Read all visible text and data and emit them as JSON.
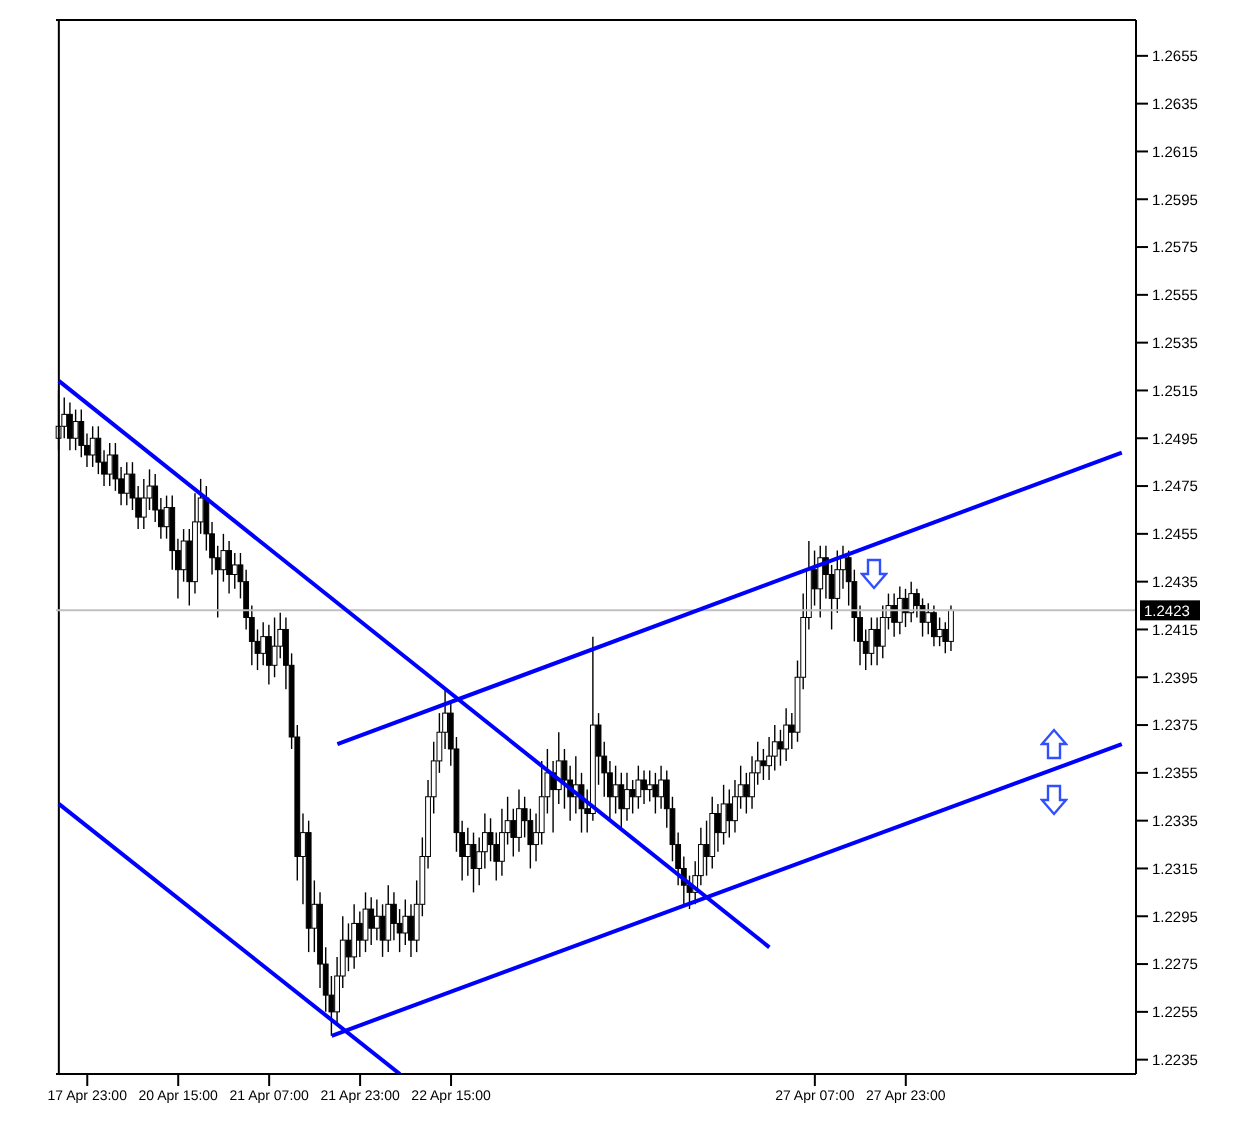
{
  "chart_data": {
    "type": "candlestick",
    "categories": [
      null,
      null,
      null,
      null,
      null,
      "17 Apr 23:00",
      null,
      null,
      null,
      null,
      null,
      null,
      null,
      null,
      null,
      null,
      null,
      null,
      null,
      null,
      null,
      "20 Apr 15:00",
      null,
      null,
      null,
      null,
      null,
      null,
      null,
      null,
      null,
      null,
      null,
      null,
      null,
      null,
      null,
      "21 Apr 07:00",
      null,
      null,
      null,
      null,
      null,
      null,
      null,
      null,
      null,
      null,
      null,
      null,
      null,
      null,
      null,
      "21 Apr 23:00",
      null,
      null,
      null,
      null,
      null,
      null,
      null,
      null,
      null,
      null,
      null,
      null,
      null,
      null,
      null,
      "22 Apr 15:00",
      null,
      null,
      null,
      null,
      null,
      null,
      null,
      null,
      null,
      null,
      null,
      null,
      null,
      null,
      null,
      null,
      null,
      null,
      null,
      null,
      null,
      null,
      null,
      null,
      null,
      null,
      null,
      null,
      null,
      null,
      null,
      null,
      null,
      null,
      null,
      null,
      null,
      null,
      null,
      null,
      null,
      null,
      null,
      null,
      null,
      null,
      null,
      null,
      null,
      null,
      null,
      null,
      null,
      null,
      null,
      null,
      null,
      null,
      null,
      null,
      null,
      null,
      null,
      "27 Apr 07:00",
      null,
      null,
      null,
      null,
      null,
      null,
      null,
      null,
      null,
      null,
      null,
      null,
      null,
      null,
      null,
      "27 Apr 23:00",
      null,
      null,
      null,
      null,
      null,
      null,
      null,
      null,
      null,
      null,
      null,
      null,
      null,
      null,
      null,
      null,
      null,
      null,
      null,
      null,
      null,
      null,
      null,
      null,
      null,
      null,
      null,
      null,
      null,
      null,
      null,
      null,
      null,
      null,
      null,
      null,
      null,
      null,
      null,
      null
    ],
    "ohlc": [
      [
        1.2495,
        1.2515,
        1.249,
        1.25
      ],
      [
        1.25,
        1.2512,
        1.2495,
        1.2505
      ],
      [
        1.2505,
        1.251,
        1.249,
        1.2495
      ],
      [
        1.2495,
        1.2507,
        1.249,
        1.2502
      ],
      [
        1.2502,
        1.2507,
        1.2487,
        1.2492
      ],
      [
        1.2492,
        1.2497,
        1.2483,
        1.2488
      ],
      [
        1.2488,
        1.25,
        1.2483,
        1.2495
      ],
      [
        1.2495,
        1.25,
        1.248,
        1.2485
      ],
      [
        1.2485,
        1.249,
        1.2475,
        1.248
      ],
      [
        1.248,
        1.2493,
        1.2475,
        1.2488
      ],
      [
        1.2488,
        1.2493,
        1.2473,
        1.2478
      ],
      [
        1.2478,
        1.2483,
        1.2467,
        1.2472
      ],
      [
        1.2472,
        1.2485,
        1.2467,
        1.248
      ],
      [
        1.248,
        1.2485,
        1.2465,
        1.247
      ],
      [
        1.247,
        1.2475,
        1.2457,
        1.2462
      ],
      [
        1.2462,
        1.2478,
        1.2457,
        1.247
      ],
      [
        1.247,
        1.2482,
        1.2465,
        1.2475
      ],
      [
        1.2475,
        1.248,
        1.246,
        1.2465
      ],
      [
        1.2465,
        1.247,
        1.2453,
        1.2458
      ],
      [
        1.2458,
        1.2471,
        1.2453,
        1.2466
      ],
      [
        1.2466,
        1.2471,
        1.244,
        1.2448
      ],
      [
        1.2448,
        1.2453,
        1.2428,
        1.244
      ],
      [
        1.244,
        1.2457,
        1.2435,
        1.2452
      ],
      [
        1.2452,
        1.2457,
        1.2425,
        1.2435
      ],
      [
        1.2435,
        1.2472,
        1.243,
        1.246
      ],
      [
        1.246,
        1.2478,
        1.2455,
        1.247
      ],
      [
        1.247,
        1.2475,
        1.2448,
        1.2455
      ],
      [
        1.2455,
        1.246,
        1.2438,
        1.2445
      ],
      [
        1.2445,
        1.245,
        1.242,
        1.244
      ],
      [
        1.244,
        1.2455,
        1.2435,
        1.2448
      ],
      [
        1.2448,
        1.2452,
        1.243,
        1.2438
      ],
      [
        1.2438,
        1.2447,
        1.2432,
        1.2442
      ],
      [
        1.2442,
        1.2447,
        1.2428,
        1.2435
      ],
      [
        1.2435,
        1.244,
        1.2415,
        1.242
      ],
      [
        1.242,
        1.2425,
        1.24,
        1.241
      ],
      [
        1.241,
        1.2415,
        1.2398,
        1.2405
      ],
      [
        1.2405,
        1.2418,
        1.24,
        1.2412
      ],
      [
        1.2412,
        1.2417,
        1.2392,
        1.24
      ],
      [
        1.24,
        1.242,
        1.2395,
        1.2408
      ],
      [
        1.2408,
        1.2422,
        1.2403,
        1.2415
      ],
      [
        1.2415,
        1.242,
        1.239,
        1.24
      ],
      [
        1.24,
        1.2405,
        1.2365,
        1.237
      ],
      [
        1.237,
        1.2375,
        1.231,
        1.232
      ],
      [
        1.232,
        1.2338,
        1.23,
        1.233
      ],
      [
        1.233,
        1.2335,
        1.228,
        1.229
      ],
      [
        1.229,
        1.231,
        1.228,
        1.23
      ],
      [
        1.23,
        1.2305,
        1.2265,
        1.2275
      ],
      [
        1.2275,
        1.2282,
        1.2255,
        1.2262
      ],
      [
        1.2262,
        1.227,
        1.2245,
        1.2255
      ],
      [
        1.2255,
        1.2278,
        1.225,
        1.227
      ],
      [
        1.227,
        1.2295,
        1.2265,
        1.2285
      ],
      [
        1.2285,
        1.2292,
        1.2272,
        1.2278
      ],
      [
        1.2278,
        1.23,
        1.2273,
        1.2292
      ],
      [
        1.2292,
        1.2297,
        1.2278,
        1.2285
      ],
      [
        1.2285,
        1.2305,
        1.228,
        1.2298
      ],
      [
        1.2298,
        1.2303,
        1.2283,
        1.229
      ],
      [
        1.229,
        1.2302,
        1.2285,
        1.2295
      ],
      [
        1.2295,
        1.23,
        1.2278,
        1.2285
      ],
      [
        1.2285,
        1.2308,
        1.228,
        1.23
      ],
      [
        1.23,
        1.2305,
        1.2285,
        1.2292
      ],
      [
        1.2292,
        1.2298,
        1.228,
        1.2288
      ],
      [
        1.2288,
        1.2302,
        1.2283,
        1.2295
      ],
      [
        1.2295,
        1.23,
        1.2278,
        1.2285
      ],
      [
        1.2285,
        1.231,
        1.228,
        1.23
      ],
      [
        1.23,
        1.2328,
        1.2295,
        1.232
      ],
      [
        1.232,
        1.2352,
        1.2315,
        1.2345
      ],
      [
        1.2345,
        1.2368,
        1.2338,
        1.236
      ],
      [
        1.236,
        1.238,
        1.2355,
        1.2372
      ],
      [
        1.2372,
        1.239,
        1.2365,
        1.238
      ],
      [
        1.238,
        1.2385,
        1.2358,
        1.2365
      ],
      [
        1.2365,
        1.237,
        1.2322,
        1.233
      ],
      [
        1.233,
        1.2335,
        1.231,
        1.232
      ],
      [
        1.232,
        1.2332,
        1.2312,
        1.2325
      ],
      [
        1.2325,
        1.233,
        1.2305,
        1.2315
      ],
      [
        1.2315,
        1.2328,
        1.2308,
        1.2322
      ],
      [
        1.2322,
        1.2338,
        1.2315,
        1.233
      ],
      [
        1.233,
        1.2336,
        1.2318,
        1.2325
      ],
      [
        1.2325,
        1.233,
        1.231,
        1.2318
      ],
      [
        1.2318,
        1.234,
        1.2312,
        1.233
      ],
      [
        1.233,
        1.2345,
        1.2325,
        1.2335
      ],
      [
        1.2335,
        1.234,
        1.232,
        1.2328
      ],
      [
        1.2328,
        1.2348,
        1.2322,
        1.234
      ],
      [
        1.234,
        1.2345,
        1.2328,
        1.2335
      ],
      [
        1.2335,
        1.234,
        1.2315,
        1.2325
      ],
      [
        1.2325,
        1.2338,
        1.2318,
        1.233
      ],
      [
        1.233,
        1.236,
        1.2325,
        1.2345
      ],
      [
        1.2345,
        1.2365,
        1.2338,
        1.2355
      ],
      [
        1.2355,
        1.236,
        1.233,
        1.2348
      ],
      [
        1.2348,
        1.2372,
        1.2342,
        1.236
      ],
      [
        1.236,
        1.2365,
        1.234,
        1.2352
      ],
      [
        1.2352,
        1.2358,
        1.2335,
        1.2345
      ],
      [
        1.2345,
        1.2362,
        1.2338,
        1.235
      ],
      [
        1.235,
        1.2355,
        1.233,
        1.234
      ],
      [
        1.234,
        1.2348,
        1.233,
        1.2338
      ],
      [
        1.2338,
        1.2412,
        1.2335,
        1.2375
      ],
      [
        1.2375,
        1.238,
        1.235,
        1.2362
      ],
      [
        1.2362,
        1.2368,
        1.2345,
        1.2355
      ],
      [
        1.2355,
        1.236,
        1.2335,
        1.2345
      ],
      [
        1.2345,
        1.2358,
        1.2338,
        1.235
      ],
      [
        1.235,
        1.2355,
        1.2332,
        1.234
      ],
      [
        1.234,
        1.2355,
        1.2335,
        1.2348
      ],
      [
        1.2348,
        1.2352,
        1.2338,
        1.2345
      ],
      [
        1.2345,
        1.2358,
        1.234,
        1.2352
      ],
      [
        1.2352,
        1.2356,
        1.2342,
        1.2348
      ],
      [
        1.2348,
        1.2356,
        1.2343,
        1.235
      ],
      [
        1.235,
        1.2355,
        1.2338,
        1.2345
      ],
      [
        1.2345,
        1.2358,
        1.234,
        1.2352
      ],
      [
        1.2352,
        1.2356,
        1.2332,
        1.234
      ],
      [
        1.234,
        1.2345,
        1.2318,
        1.2325
      ],
      [
        1.2325,
        1.233,
        1.2308,
        1.2315
      ],
      [
        1.2315,
        1.232,
        1.23,
        1.2308
      ],
      [
        1.2308,
        1.2312,
        1.2298,
        1.2305
      ],
      [
        1.2305,
        1.2318,
        1.23,
        1.2312
      ],
      [
        1.2312,
        1.2332,
        1.2308,
        1.2325
      ],
      [
        1.2325,
        1.2335,
        1.2312,
        1.232
      ],
      [
        1.232,
        1.2345,
        1.2315,
        1.2338
      ],
      [
        1.2338,
        1.2342,
        1.2322,
        1.233
      ],
      [
        1.233,
        1.235,
        1.2325,
        1.2342
      ],
      [
        1.2342,
        1.2348,
        1.2328,
        1.2335
      ],
      [
        1.2335,
        1.2352,
        1.233,
        1.2345
      ],
      [
        1.2345,
        1.2358,
        1.234,
        1.235
      ],
      [
        1.235,
        1.2355,
        1.2338,
        1.2345
      ],
      [
        1.2345,
        1.2362,
        1.234,
        1.2355
      ],
      [
        1.2355,
        1.2368,
        1.235,
        1.236
      ],
      [
        1.236,
        1.2365,
        1.2352,
        1.2358
      ],
      [
        1.2358,
        1.237,
        1.2352,
        1.2362
      ],
      [
        1.2362,
        1.2375,
        1.2356,
        1.2368
      ],
      [
        1.2368,
        1.2373,
        1.2358,
        1.2365
      ],
      [
        1.2365,
        1.2382,
        1.236,
        1.2375
      ],
      [
        1.2375,
        1.238,
        1.2365,
        1.2372
      ],
      [
        1.2372,
        1.2402,
        1.2368,
        1.2395
      ],
      [
        1.2395,
        1.243,
        1.239,
        1.242
      ],
      [
        1.242,
        1.2452,
        1.2415,
        1.244
      ],
      [
        1.244,
        1.2448,
        1.2425,
        1.2432
      ],
      [
        1.2432,
        1.245,
        1.242,
        1.2445
      ],
      [
        1.2445,
        1.245,
        1.2428,
        1.2438
      ],
      [
        1.2438,
        1.2442,
        1.2415,
        1.2428
      ],
      [
        1.2428,
        1.2448,
        1.2422,
        1.244
      ],
      [
        1.244,
        1.245,
        1.2432,
        1.2445
      ],
      [
        1.2445,
        1.2448,
        1.2425,
        1.2435
      ],
      [
        1.2435,
        1.244,
        1.241,
        1.242
      ],
      [
        1.242,
        1.2425,
        1.24,
        1.241
      ],
      [
        1.241,
        1.2415,
        1.2398,
        1.2405
      ],
      [
        1.2405,
        1.242,
        1.24,
        1.2415
      ],
      [
        1.2415,
        1.242,
        1.24,
        1.2408
      ],
      [
        1.2408,
        1.2425,
        1.2403,
        1.242
      ],
      [
        1.242,
        1.243,
        1.2415,
        1.2425
      ],
      [
        1.2425,
        1.243,
        1.2412,
        1.2418
      ],
      [
        1.2418,
        1.2433,
        1.2413,
        1.2428
      ],
      [
        1.2428,
        1.2432,
        1.2416,
        1.2422
      ],
      [
        1.2422,
        1.2435,
        1.2418,
        1.243
      ],
      [
        1.243,
        1.2432,
        1.242,
        1.2425
      ],
      [
        1.2425,
        1.2428,
        1.2412,
        1.2418
      ],
      [
        1.2418,
        1.2426,
        1.2413,
        1.2422
      ],
      [
        1.2422,
        1.2425,
        1.2408,
        1.2412
      ],
      [
        1.2412,
        1.242,
        1.2408,
        1.2415
      ],
      [
        1.2415,
        1.2418,
        1.2405,
        1.241
      ],
      [
        1.241,
        1.2425,
        1.2406,
        1.2423
      ],
      null,
      null,
      null,
      null,
      null,
      null,
      null,
      null,
      null,
      null,
      null,
      null,
      null,
      null,
      null,
      null,
      null,
      null,
      null,
      null,
      null,
      null,
      null,
      null,
      null,
      null,
      null,
      null,
      null,
      null,
      null,
      null
    ],
    "series": [
      {
        "type": "line",
        "color": "#0000ff",
        "values": [
          1.2519,
          null,
          null,
          null,
          null,
          null,
          null,
          null,
          null,
          null,
          null,
          null,
          null,
          null,
          null,
          null,
          null,
          null,
          null,
          null,
          null,
          null,
          null,
          null,
          null,
          null,
          null,
          null,
          null,
          null,
          null,
          null,
          null,
          null,
          null,
          null,
          null,
          null,
          null,
          null,
          null,
          null,
          null,
          null,
          null,
          null,
          null,
          null,
          null,
          null,
          null,
          null,
          null,
          null,
          null,
          null,
          null,
          null,
          null,
          null,
          null,
          null,
          null,
          null,
          null,
          null,
          null,
          null,
          null,
          null,
          null,
          null,
          null,
          null,
          null,
          null,
          null,
          null,
          null,
          null,
          null,
          null,
          null,
          null,
          null,
          null,
          null,
          null,
          null,
          null,
          null,
          null,
          null,
          null,
          null,
          null,
          null,
          null,
          null,
          null,
          null,
          null,
          null,
          null,
          null,
          null,
          null,
          null,
          null,
          null,
          null,
          null,
          null,
          null,
          null,
          null,
          null,
          null,
          null,
          null,
          null,
          null,
          null,
          null,
          null,
          1.2282,
          null,
          null,
          null,
          null,
          null,
          null,
          null,
          null,
          null,
          null,
          null,
          null,
          null,
          null,
          null,
          null,
          null,
          null,
          null,
          null,
          null,
          null,
          null,
          null,
          null,
          null,
          null,
          null,
          null,
          null,
          null,
          null,
          null,
          null,
          null,
          null,
          null,
          null,
          null,
          null,
          null,
          null,
          null,
          null,
          null,
          null,
          null,
          null,
          null,
          null,
          null,
          null,
          null,
          null,
          null,
          null,
          null,
          null,
          null,
          null,
          null,
          null,
          null,
          null
        ]
      },
      {
        "type": "line",
        "color": "#0000ff",
        "values": [
          1.2342,
          null,
          null,
          null,
          null,
          null,
          null,
          null,
          null,
          null,
          null,
          null,
          null,
          null,
          null,
          null,
          null,
          null,
          null,
          null,
          null,
          null,
          null,
          null,
          null,
          null,
          null,
          null,
          null,
          null,
          null,
          null,
          null,
          null,
          null,
          null,
          null,
          null,
          null,
          null,
          null,
          null,
          null,
          null,
          null,
          null,
          null,
          null,
          null,
          null,
          null,
          null,
          null,
          null,
          null,
          null,
          null,
          null,
          null,
          null,
          1.2229,
          null,
          null,
          null,
          null,
          null,
          null,
          null,
          null,
          null,
          null,
          null,
          null,
          null,
          null,
          null,
          null,
          null,
          null,
          null,
          null,
          null,
          null,
          null,
          null,
          null,
          null,
          null,
          null,
          null,
          null,
          null,
          null,
          null,
          null,
          null,
          null,
          null,
          null,
          null,
          null,
          null,
          null,
          null,
          null,
          null,
          null,
          null,
          null,
          null,
          null,
          null,
          null,
          null,
          null,
          null,
          null,
          null,
          null,
          null,
          null,
          null,
          null,
          null,
          null,
          null,
          null,
          null,
          null,
          null,
          null,
          null,
          null,
          null,
          null,
          null,
          null,
          null,
          null,
          null,
          null,
          null,
          null,
          null,
          null,
          null,
          null,
          null,
          null,
          null,
          null,
          null,
          null,
          null,
          null,
          null,
          null,
          null,
          null,
          null,
          null,
          null,
          null,
          null,
          null,
          null,
          null,
          null,
          null,
          null,
          null,
          null,
          null,
          null,
          null,
          null,
          null,
          null,
          null,
          null,
          null,
          null,
          null,
          null,
          null,
          null,
          null,
          null,
          null,
          null
        ]
      },
      {
        "type": "line",
        "color": "#0000ff",
        "values": [
          null,
          null,
          null,
          null,
          null,
          null,
          null,
          null,
          null,
          null,
          null,
          null,
          null,
          null,
          null,
          null,
          null,
          null,
          null,
          null,
          null,
          null,
          null,
          null,
          null,
          null,
          null,
          null,
          null,
          null,
          null,
          null,
          null,
          null,
          null,
          null,
          null,
          null,
          null,
          null,
          null,
          null,
          null,
          null,
          null,
          null,
          null,
          null,
          null,
          1.2367,
          null,
          null,
          null,
          null,
          null,
          null,
          null,
          null,
          null,
          null,
          null,
          null,
          null,
          null,
          null,
          null,
          null,
          null,
          null,
          null,
          null,
          null,
          null,
          null,
          null,
          null,
          null,
          null,
          null,
          null,
          null,
          null,
          null,
          null,
          null,
          null,
          null,
          null,
          null,
          null,
          null,
          null,
          null,
          null,
          null,
          null,
          null,
          null,
          null,
          null,
          null,
          null,
          null,
          null,
          null,
          null,
          null,
          null,
          null,
          null,
          null,
          null,
          null,
          null,
          null,
          null,
          null,
          null,
          null,
          null,
          null,
          null,
          null,
          null,
          null,
          null,
          null,
          null,
          null,
          null,
          null,
          null,
          null,
          null,
          null,
          null,
          null,
          null,
          null,
          null,
          null,
          null,
          null,
          null,
          null,
          null,
          null,
          null,
          null,
          null,
          null,
          null,
          null,
          null,
          null,
          null,
          null,
          null,
          null,
          null,
          null,
          null,
          null,
          null,
          null,
          null,
          null,
          null,
          null,
          null,
          null,
          null,
          null,
          null,
          null,
          null,
          null,
          null,
          null,
          null,
          null,
          null,
          null,
          null,
          null,
          null,
          null,
          1.2489,
          null,
          null
        ]
      },
      {
        "type": "line",
        "color": "#0000ff",
        "values": [
          null,
          null,
          null,
          null,
          null,
          null,
          null,
          null,
          null,
          null,
          null,
          null,
          null,
          null,
          null,
          null,
          null,
          null,
          null,
          null,
          null,
          null,
          null,
          null,
          null,
          null,
          null,
          null,
          null,
          null,
          null,
          null,
          null,
          null,
          null,
          null,
          null,
          null,
          null,
          null,
          null,
          null,
          null,
          null,
          null,
          null,
          null,
          null,
          1.2245,
          null,
          null,
          null,
          null,
          null,
          null,
          null,
          null,
          null,
          null,
          null,
          null,
          null,
          null,
          null,
          null,
          null,
          null,
          null,
          null,
          null,
          null,
          null,
          null,
          null,
          null,
          null,
          null,
          null,
          null,
          null,
          null,
          null,
          null,
          null,
          null,
          null,
          null,
          null,
          null,
          null,
          null,
          null,
          null,
          null,
          null,
          null,
          null,
          null,
          null,
          null,
          null,
          null,
          null,
          null,
          null,
          null,
          null,
          null,
          null,
          null,
          null,
          null,
          null,
          null,
          null,
          null,
          null,
          null,
          null,
          null,
          null,
          null,
          null,
          null,
          null,
          null,
          null,
          null,
          null,
          null,
          null,
          null,
          null,
          null,
          null,
          null,
          null,
          null,
          null,
          null,
          null,
          null,
          null,
          null,
          null,
          null,
          null,
          null,
          null,
          null,
          null,
          null,
          null,
          null,
          null,
          null,
          null,
          null,
          null,
          null,
          null,
          null,
          null,
          null,
          null,
          null,
          null,
          null,
          null,
          null,
          null,
          null,
          null,
          null,
          null,
          null,
          null,
          null,
          null,
          null,
          null,
          null,
          null,
          null,
          null,
          null,
          null,
          1.2367,
          null,
          null
        ]
      }
    ],
    "ylim": [
      1.2229,
      1.267
    ],
    "yticks": [
      1.2235,
      1.2255,
      1.2275,
      1.2295,
      1.2315,
      1.2335,
      1.2355,
      1.2375,
      1.2395,
      1.2415,
      1.2435,
      1.2455,
      1.2475,
      1.2495,
      1.2515,
      1.2535,
      1.2555,
      1.2575,
      1.2595,
      1.2615,
      1.2635,
      1.2655
    ],
    "ref_lines": [
      {
        "axis": "y",
        "value": 1.2423,
        "label": "1.2423",
        "color": "#c0c0c0"
      }
    ]
  }
}
